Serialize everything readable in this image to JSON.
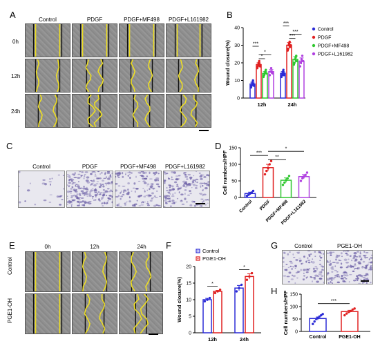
{
  "panels": {
    "A": "A",
    "B": "B",
    "C": "C",
    "D": "D",
    "E": "E",
    "F": "F",
    "G": "G",
    "H": "H"
  },
  "panelA": {
    "columns": [
      "Control",
      "PDGF",
      "PDGF+MF498",
      "PDGF+L161982"
    ],
    "rows": [
      "0h",
      "12h",
      "24h"
    ]
  },
  "panelC": {
    "columns": [
      "Control",
      "PDGF",
      "PDGF+MF498",
      "PDGF+L161982"
    ]
  },
  "panelE": {
    "columns": [
      "0h",
      "12h",
      "24h"
    ],
    "rows": [
      "Control",
      "PGE1-OH"
    ]
  },
  "panelG": {
    "columns": [
      "Control",
      "PGE1-OH"
    ]
  },
  "colors": {
    "control": "#2b2bd6",
    "pdgf": "#e02020",
    "mf498": "#2ec72e",
    "l161982": "#b040e0",
    "wound_edge": "#f0e020"
  },
  "chart_data": [
    {
      "id": "B",
      "type": "bar",
      "ylabel": "Wound closure(%)",
      "ylim": [
        0,
        40
      ],
      "yticks": [
        0,
        10,
        20,
        30,
        40
      ],
      "categories": [
        "12h",
        "24h"
      ],
      "legend_position": "right",
      "series": [
        {
          "name": "Control",
          "color": "#2b2bd6",
          "values": [
            8,
            14
          ],
          "err": [
            1,
            1
          ],
          "points": [
            [
              6,
              7,
              8,
              9,
              10,
              8,
              7
            ],
            [
              12,
              13,
              14,
              15,
              16,
              13,
              14
            ]
          ]
        },
        {
          "name": "PDGF",
          "color": "#e02020",
          "values": [
            19,
            30
          ],
          "err": [
            1,
            1.5
          ],
          "points": [
            [
              17,
              18,
              19,
              20,
              21,
              19,
              18
            ],
            [
              27,
              28,
              30,
              31,
              32,
              29,
              30
            ]
          ]
        },
        {
          "name": "PDGF+MF498",
          "color": "#2ec72e",
          "values": [
            14,
            22
          ],
          "err": [
            1,
            1.5
          ],
          "points": [
            [
              12,
              13,
              14,
              15,
              16,
              14
            ],
            [
              19,
              20,
              22,
              23,
              24,
              21
            ]
          ]
        },
        {
          "name": "PDGF+L161982",
          "color": "#b040e0",
          "values": [
            15,
            21
          ],
          "err": [
            1.2,
            1.8
          ],
          "points": [
            [
              13,
              15,
              17,
              15,
              14
            ],
            [
              18,
              20,
              22,
              24,
              21
            ]
          ]
        }
      ],
      "significance": [
        {
          "group": "12h",
          "from": 0,
          "to": 1,
          "label": "***"
        },
        {
          "group": "12h",
          "from": 1,
          "to": 2,
          "label": "*"
        },
        {
          "group": "12h",
          "from": 1,
          "to": 3,
          "label": "*"
        },
        {
          "group": "24h",
          "from": 0,
          "to": 1,
          "label": "***"
        },
        {
          "group": "24h",
          "from": 1,
          "to": 2,
          "label": "***"
        },
        {
          "group": "24h",
          "from": 1,
          "to": 3,
          "label": "***"
        }
      ]
    },
    {
      "id": "D",
      "type": "bar",
      "ylabel": "Cell numbers/HPF",
      "ylim": [
        0,
        150
      ],
      "yticks": [
        0,
        50,
        100,
        150
      ],
      "categories": [
        "Control",
        "PDGF",
        "PDGF+MF498",
        "PDGF+L161982"
      ],
      "colors": [
        "#2b2bd6",
        "#e02020",
        "#2ec72e",
        "#b040e0"
      ],
      "values": [
        12,
        90,
        52,
        63
      ],
      "err": [
        4,
        10,
        7,
        6
      ],
      "points": [
        [
          5,
          8,
          12,
          15,
          20
        ],
        [
          70,
          80,
          88,
          100,
          110
        ],
        [
          38,
          45,
          52,
          58,
          65
        ],
        [
          50,
          58,
          63,
          68,
          75
        ]
      ],
      "significance": [
        {
          "from": 0,
          "to": 1,
          "label": "***"
        },
        {
          "from": 1,
          "to": 2,
          "label": "**"
        },
        {
          "from": 1,
          "to": 3,
          "label": "*"
        }
      ]
    },
    {
      "id": "F",
      "type": "bar",
      "ylabel": "Wound closure(%)",
      "ylim": [
        0,
        20
      ],
      "yticks": [
        0,
        5,
        10,
        15,
        20
      ],
      "categories": [
        "12h",
        "24h"
      ],
      "legend_position": "top-left",
      "series": [
        {
          "name": "Control",
          "color": "#2b2bd6",
          "values": [
            10,
            13.5
          ],
          "err": [
            0.4,
            0.8
          ],
          "points": [
            [
              9.5,
              10,
              10.5
            ],
            [
              12.5,
              13.5,
              14.5
            ]
          ]
        },
        {
          "name": "PGE1-OH",
          "color": "#e02020",
          "values": [
            12.5,
            17
          ],
          "err": [
            0.3,
            0.8
          ],
          "points": [
            [
              12,
              12.5,
              13
            ],
            [
              16,
              17,
              18
            ]
          ]
        }
      ],
      "significance": [
        {
          "group": "12h",
          "from": 0,
          "to": 1,
          "label": "*"
        },
        {
          "group": "24h",
          "from": 0,
          "to": 1,
          "label": "*"
        }
      ]
    },
    {
      "id": "H",
      "type": "bar",
      "ylabel": "Cell numbers/HPF",
      "ylim": [
        0,
        150
      ],
      "yticks": [
        0,
        50,
        100,
        150
      ],
      "categories": [
        "Control",
        "PGE1-OH"
      ],
      "colors": [
        "#2b2bd6",
        "#e02020"
      ],
      "values": [
        52,
        80
      ],
      "err": [
        6,
        5
      ],
      "points": [
        [
          30,
          40,
          50,
          55,
          60,
          65,
          70
        ],
        [
          65,
          72,
          78,
          82,
          88,
          92
        ]
      ],
      "significance": [
        {
          "from": 0,
          "to": 1,
          "label": "***"
        }
      ]
    }
  ]
}
